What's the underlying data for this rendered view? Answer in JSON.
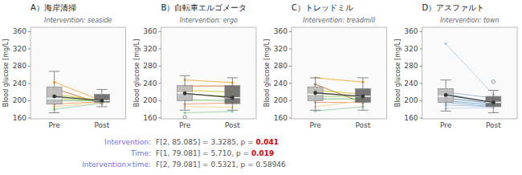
{
  "chart_data": [
    {
      "type": "box",
      "title": "A）海岸清掃",
      "subtitle": "Intervention: seaside",
      "categories": [
        "Pre",
        "Post"
      ],
      "ylabel": "Blood glucose [mg/L]",
      "ylim": [
        158,
        370
      ],
      "yticks": [
        160,
        200,
        240,
        280,
        320,
        360
      ],
      "grid": false,
      "boxes": [
        {
          "median": 205,
          "q1": 192,
          "q3": 232,
          "whisker_low": 172,
          "whisker_high": 268,
          "color": "#b8b8b8"
        },
        {
          "median": 200,
          "q1": 196,
          "q3": 215,
          "whisker_low": 186,
          "whisker_high": 226,
          "color": "#686868"
        }
      ],
      "means": [
        210,
        200
      ],
      "series": [
        {
          "color": "#f0a020",
          "values": [
            243,
            200
          ]
        },
        {
          "color": "#d06010",
          "values": [
            228,
            193
          ]
        },
        {
          "color": "#c8c000",
          "values": [
            215,
            200
          ]
        },
        {
          "color": "#a0c040",
          "values": [
            205,
            200
          ]
        },
        {
          "color": "#60b860",
          "values": [
            200,
            200
          ]
        },
        {
          "color": "#f09060",
          "values": [
            192,
            198
          ]
        },
        {
          "color": "#f0d080",
          "values": [
            186,
            196
          ]
        },
        {
          "color": "#90c8a0",
          "values": [
            180,
            194
          ]
        }
      ],
      "outliers": []
    },
    {
      "type": "box",
      "title": "B）自転車エルゴメータ",
      "subtitle": "Intervention: ergo",
      "categories": [
        "Pre",
        "Post"
      ],
      "ylabel": "Blood glucose [mg/L]",
      "ylim": [
        158,
        370
      ],
      "yticks": [
        160,
        200,
        240,
        280,
        320,
        360
      ],
      "grid": false,
      "boxes": [
        {
          "median": 218,
          "q1": 200,
          "q3": 235,
          "whisker_low": 178,
          "whisker_high": 258,
          "color": "#b8b8b8"
        },
        {
          "median": 207,
          "q1": 193,
          "q3": 235,
          "whisker_low": 178,
          "whisker_high": 253,
          "color": "#686868"
        }
      ],
      "means": [
        217,
        207
      ],
      "series": [
        {
          "color": "#f0a020",
          "values": [
            248,
            242
          ]
        },
        {
          "color": "#d06010",
          "values": [
            234,
            234
          ]
        },
        {
          "color": "#c8c000",
          "values": [
            224,
            220
          ]
        },
        {
          "color": "#a0c040",
          "values": [
            215,
            210
          ]
        },
        {
          "color": "#60b860",
          "values": [
            202,
            200
          ]
        },
        {
          "color": "#f09060",
          "values": [
            192,
            195
          ]
        },
        {
          "color": "#f0d080",
          "values": [
            186,
            185
          ]
        },
        {
          "color": "#90c8a0",
          "values": [
            172,
            175
          ]
        }
      ],
      "outliers": [
        {
          "category": "Pre",
          "value": 162,
          "marker": "open-circle"
        }
      ]
    },
    {
      "type": "box",
      "title": "C）トレッドミル",
      "subtitle": "Intervention: treadmill",
      "categories": [
        "Pre",
        "Post"
      ],
      "ylabel": "Blood glucose [mg/L]",
      "ylim": [
        158,
        370
      ],
      "yticks": [
        160,
        200,
        240,
        280,
        320,
        360
      ],
      "grid": false,
      "boxes": [
        {
          "median": 215,
          "q1": 200,
          "q3": 232,
          "whisker_low": 178,
          "whisker_high": 253,
          "color": "#b8b8b8"
        },
        {
          "median": 210,
          "q1": 196,
          "q3": 228,
          "whisker_low": 178,
          "whisker_high": 253,
          "color": "#686868"
        }
      ],
      "means": [
        218,
        210
      ],
      "series": [
        {
          "color": "#f0a020",
          "values": [
            253,
            243
          ]
        },
        {
          "color": "#d06010",
          "values": [
            238,
            195
          ]
        },
        {
          "color": "#c8c000",
          "values": [
            224,
            215
          ]
        },
        {
          "color": "#a0c040",
          "values": [
            210,
            210
          ]
        },
        {
          "color": "#60b860",
          "values": [
            204,
            204
          ]
        },
        {
          "color": "#f09060",
          "values": [
            196,
            196
          ]
        },
        {
          "color": "#f0d080",
          "values": [
            186,
            200
          ]
        },
        {
          "color": "#90c8a0",
          "values": [
            176,
            186
          ]
        }
      ],
      "outliers": []
    },
    {
      "type": "box",
      "title": "D）アスファルト",
      "subtitle": "Intervention: town",
      "categories": [
        "Pre",
        "Post"
      ],
      "ylabel": "Blood glucose [mg/L]",
      "ylim": [
        158,
        370
      ],
      "yticks": [
        160,
        200,
        240,
        280,
        320,
        360
      ],
      "grid": false,
      "boxes": [
        {
          "median": 210,
          "q1": 196,
          "q3": 228,
          "whisker_low": 176,
          "whisker_high": 248,
          "color": "#b8b8b8"
        },
        {
          "median": 196,
          "q1": 186,
          "q3": 210,
          "whisker_low": 172,
          "whisker_high": 224,
          "color": "#686868"
        }
      ],
      "means": [
        213,
        196
      ],
      "series": [
        {
          "color": "#a8c8e8",
          "values": [
            332,
            214
          ]
        },
        {
          "color": "#88acd0",
          "values": [
            220,
            206
          ]
        },
        {
          "color": "#6090c0",
          "values": [
            215,
            196
          ]
        },
        {
          "color": "#4878b0",
          "values": [
            206,
            194
          ]
        },
        {
          "color": "#5890c8",
          "values": [
            200,
            190
          ]
        },
        {
          "color": "#78a8d8",
          "values": [
            196,
            186
          ]
        },
        {
          "color": "#98b8e0",
          "values": [
            190,
            186
          ]
        },
        {
          "color": "#b8cce8",
          "values": [
            182,
            184
          ]
        }
      ],
      "outliers": [
        {
          "category": "Post",
          "value": 244,
          "marker": "open-circle"
        }
      ]
    }
  ],
  "annotations": [
    {
      "label": "Intervention:",
      "text": "F[2, 85.085] = 3.3285, p = ",
      "pval": "0.041",
      "color": "#dd0000"
    },
    {
      "label": "Time:",
      "text": "F[1, 79.081] = 5.710, p = ",
      "pval": "0.019",
      "color": "#dd0000"
    },
    {
      "label": "Intervention×time:",
      "text": "F[2, 79.081] = 0.5321, p = 0.58946"
    }
  ]
}
